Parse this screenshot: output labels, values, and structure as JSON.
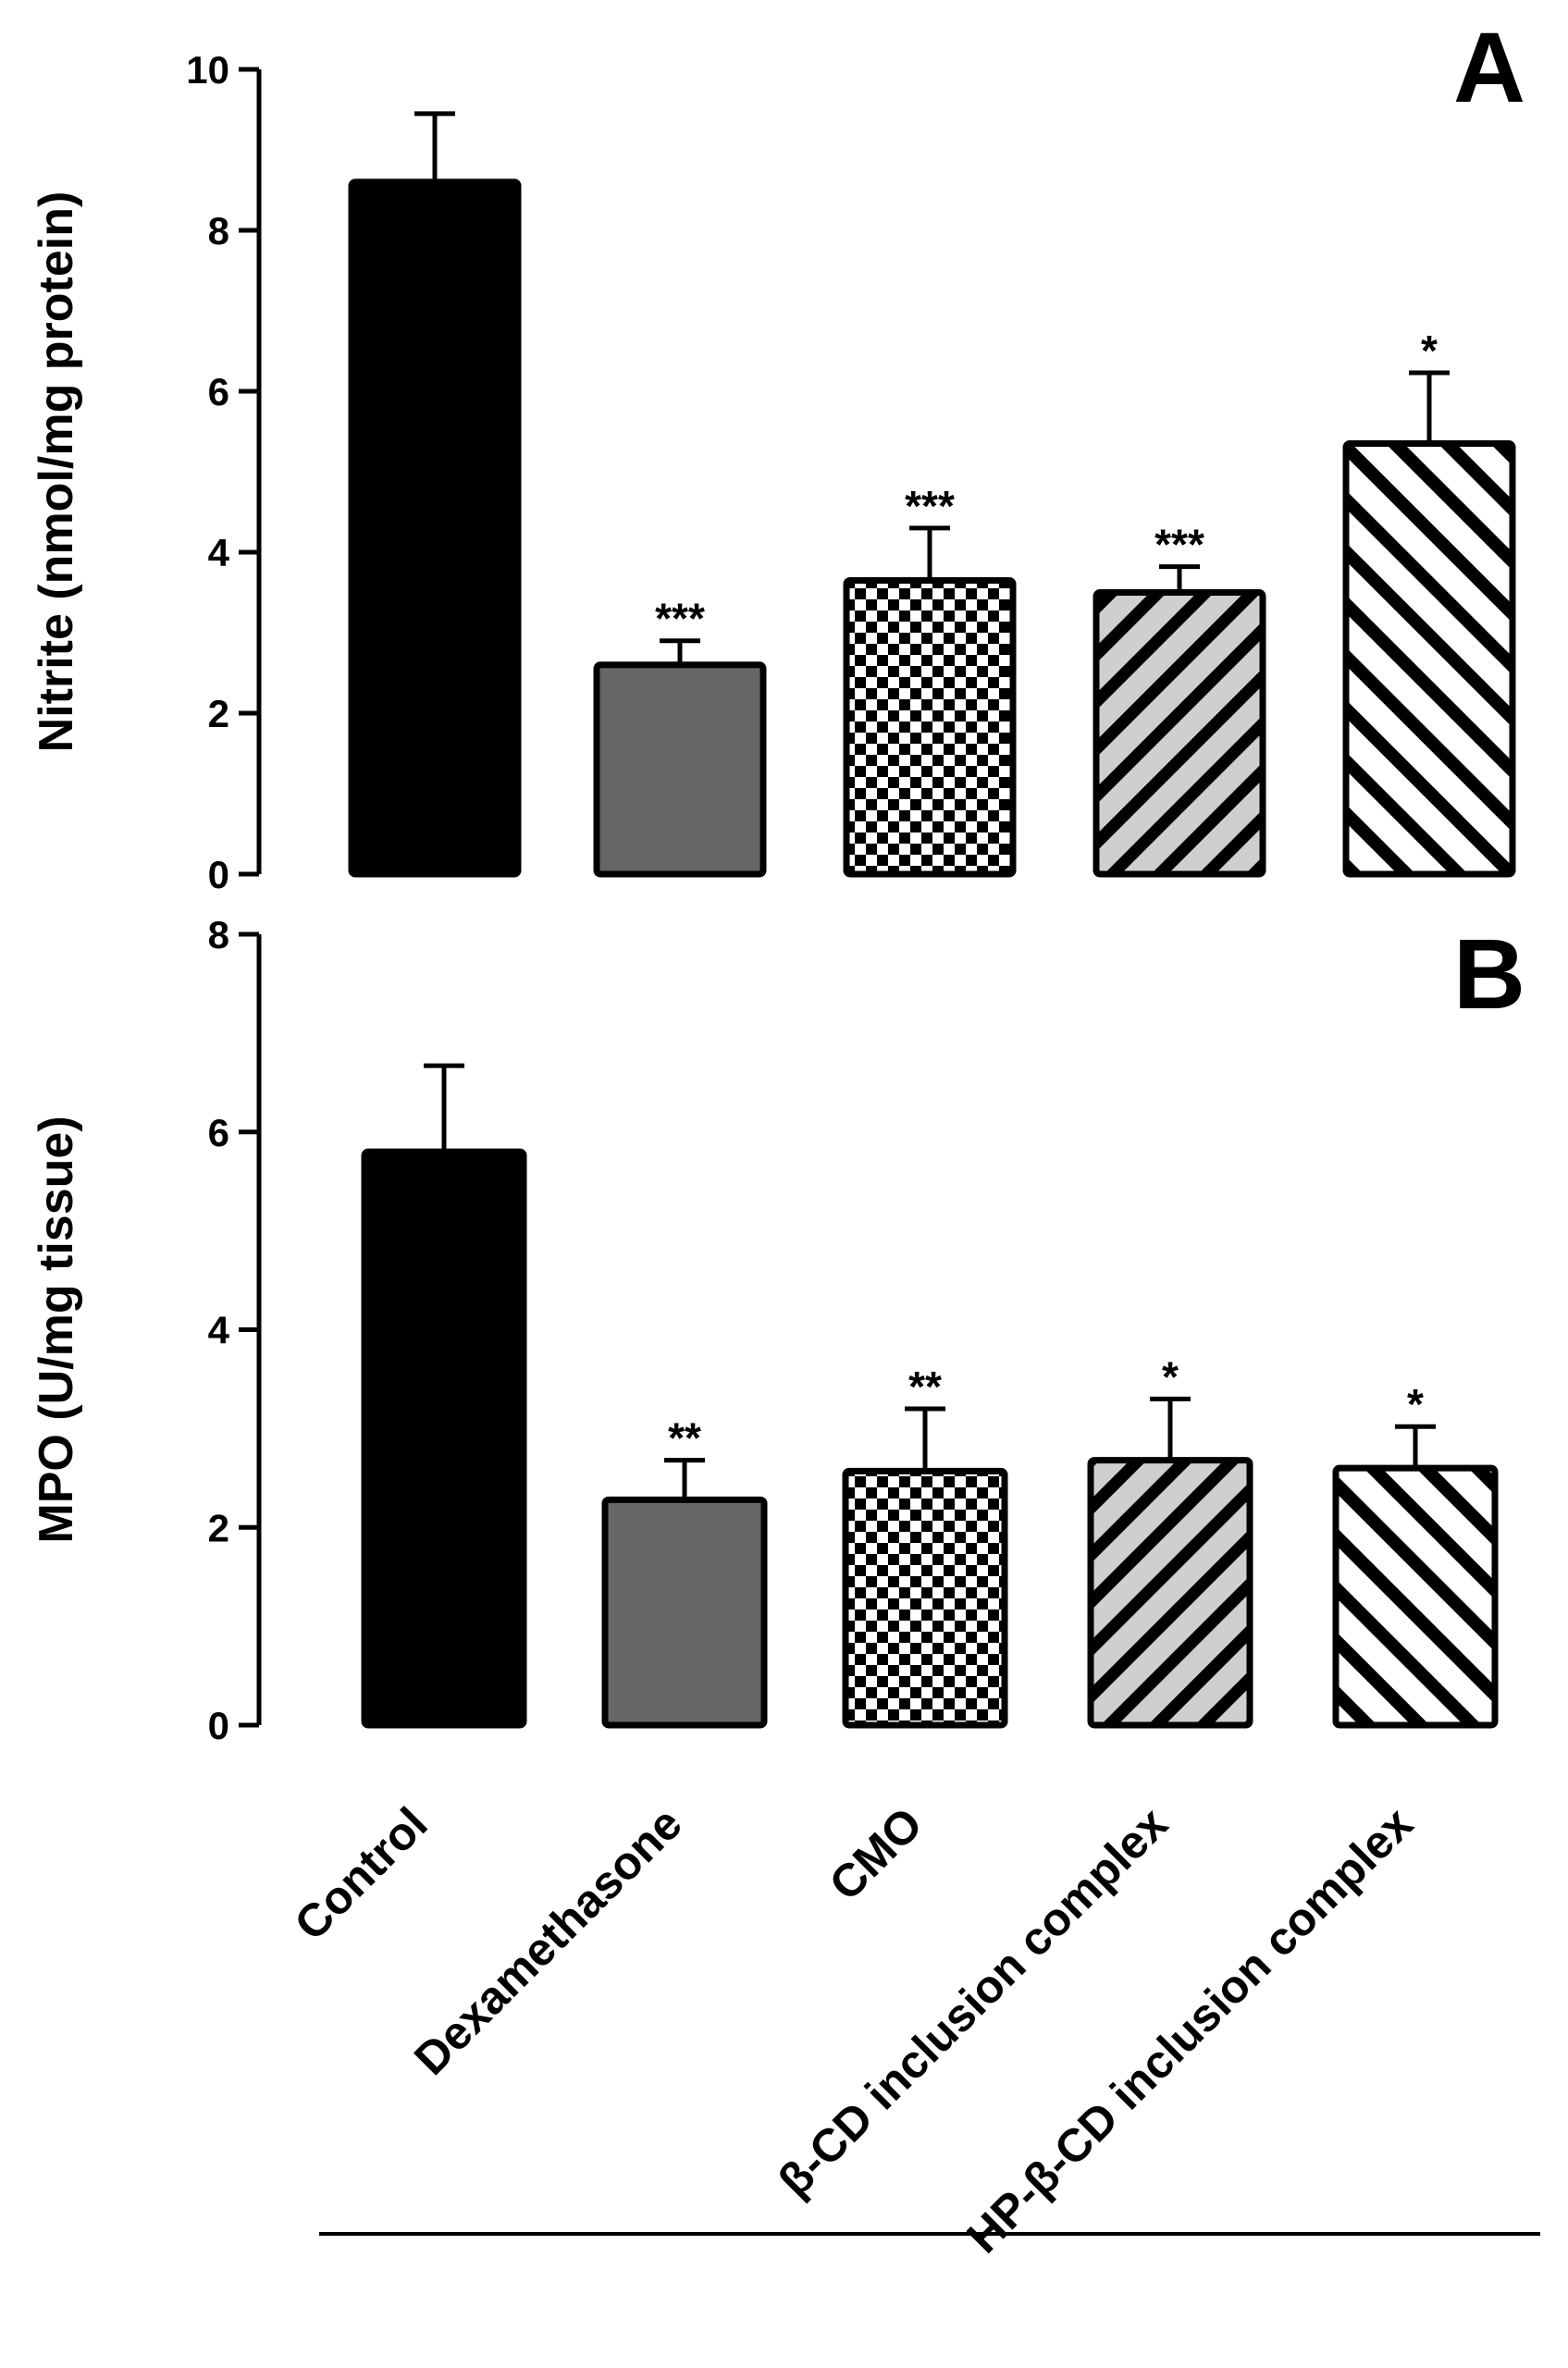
{
  "categories": [
    "Control",
    "Dexamethasone",
    "CMO",
    "β-CD inclusion complex",
    "HP-β-CD inclusion complex"
  ],
  "fills": [
    "solid-black",
    "solid-gray",
    "checker",
    "diag-gray",
    "diag-white"
  ],
  "colors": {
    "black": "#000000",
    "gray": "#666666",
    "light_gray": "#cccccc",
    "white": "#ffffff"
  },
  "chart_data": [
    {
      "type": "bar",
      "panel": "A",
      "ylabel": "Nitrite (nmol/mg protein)",
      "ylim": [
        0,
        10
      ],
      "yticks": [
        0,
        2,
        4,
        6,
        8,
        10
      ],
      "categories": [
        "Control",
        "Dexamethasone",
        "CMO",
        "β-CD inclusion complex",
        "HP-β-CD inclusion complex"
      ],
      "values": [
        8.6,
        2.6,
        3.65,
        3.5,
        5.35
      ],
      "errors": [
        0.85,
        0.3,
        0.65,
        0.32,
        0.88
      ],
      "significance": [
        "",
        "***",
        "***",
        "***",
        "*"
      ]
    },
    {
      "type": "bar",
      "panel": "B",
      "ylabel": "MPO (U/mg tissue)",
      "ylim": [
        0,
        8
      ],
      "yticks": [
        0,
        2,
        4,
        6,
        8
      ],
      "categories": [
        "Control",
        "Dexamethasone",
        "CMO",
        "β-CD inclusion complex",
        "HP-β-CD inclusion complex"
      ],
      "values": [
        5.8,
        2.28,
        2.57,
        2.68,
        2.6
      ],
      "errors": [
        0.87,
        0.4,
        0.63,
        0.62,
        0.42
      ],
      "significance": [
        "",
        "**",
        "**",
        "*",
        "*"
      ]
    }
  ]
}
